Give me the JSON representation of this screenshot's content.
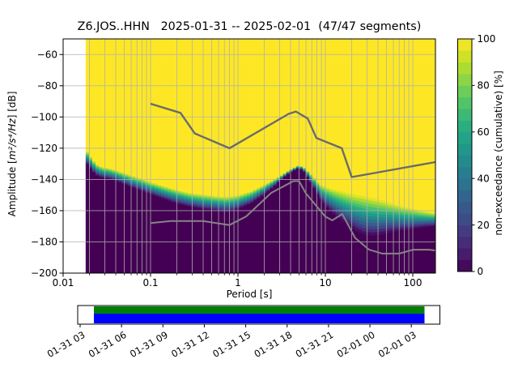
{
  "chart_data": {
    "type": "heatmap",
    "title": "Z6.JOS..HHN   2025-01-31 -- 2025-02-01  (47/47 segments)",
    "xlabel": "Period [s]",
    "ylabel": "Amplitude [m²/s⁴/Hz] [dB]",
    "ylabel_parts": {
      "prefix": "Amplitude [",
      "math": "m²/s⁴/Hz",
      "suffix": "] [dB]"
    },
    "colorbar_label": "non-exceedance (cumulative) [%]",
    "x_axis": {
      "scale": "log",
      "min": 0.01,
      "max": 181.7,
      "major_ticks": [
        {
          "v": 0.01,
          "label": "0.01"
        },
        {
          "v": 0.1,
          "label": "0.1"
        },
        {
          "v": 1,
          "label": "1"
        },
        {
          "v": 10,
          "label": "10"
        },
        {
          "v": 100,
          "label": "100"
        }
      ]
    },
    "y_axis": {
      "min": -200,
      "max": -50,
      "ticks": [
        {
          "v": -60,
          "label": "−60"
        },
        {
          "v": -80,
          "label": "−80"
        },
        {
          "v": -100,
          "label": "−100"
        },
        {
          "v": -120,
          "label": "−120"
        },
        {
          "v": -140,
          "label": "−140"
        },
        {
          "v": -160,
          "label": "−160"
        },
        {
          "v": -180,
          "label": "−180"
        },
        {
          "v": -200,
          "label": "−200"
        }
      ]
    },
    "colorbar": {
      "min": 0,
      "max": 100,
      "bands": 20,
      "ticks": [
        {
          "v": 0,
          "label": "0"
        },
        {
          "v": 20,
          "label": "20"
        },
        {
          "v": 40,
          "label": "40"
        },
        {
          "v": 60,
          "label": "60"
        },
        {
          "v": 80,
          "label": "80"
        },
        {
          "v": 100,
          "label": "100"
        }
      ]
    },
    "colormap": [
      [
        0.0,
        "#440154"
      ],
      [
        0.1,
        "#482475"
      ],
      [
        0.2,
        "#414487"
      ],
      [
        0.3,
        "#355f8d"
      ],
      [
        0.4,
        "#2a788e"
      ],
      [
        0.5,
        "#21918c"
      ],
      [
        0.6,
        "#22a884"
      ],
      [
        0.7,
        "#44bf70"
      ],
      [
        0.8,
        "#7ad151"
      ],
      [
        0.9,
        "#bddf26"
      ],
      [
        1.0,
        "#fde725"
      ]
    ],
    "distribution": {
      "comment": "per period: dB where cumulative non-exceedance reaches 100% (top of transition) and 0% (top of dark region)",
      "periods": [
        0.0181,
        0.021,
        0.024,
        0.028,
        0.033,
        0.04,
        0.055,
        0.075,
        0.1,
        0.14,
        0.2,
        0.28,
        0.4,
        0.55,
        0.75,
        1.0,
        1.4,
        1.9,
        2.6,
        3.3,
        4.0,
        5.0,
        5.8,
        7.0,
        8.6,
        10.5,
        13,
        17,
        22,
        28,
        36,
        46,
        60,
        80,
        105,
        140,
        181.7
      ],
      "db_100pct": [
        -120.5,
        -126,
        -130,
        -132,
        -132.5,
        -134,
        -136.5,
        -139,
        -141.5,
        -144,
        -146.5,
        -148.5,
        -149.5,
        -150.5,
        -151,
        -150,
        -147.5,
        -144,
        -140,
        -136.5,
        -133.5,
        -130.8,
        -132.5,
        -137,
        -143,
        -145,
        -146.5,
        -148,
        -149.5,
        -150.5,
        -152,
        -153.5,
        -155.5,
        -157.5,
        -159,
        -160.5,
        -161.5
      ],
      "db_0pct": [
        -129,
        -134,
        -137.5,
        -139,
        -139.5,
        -141,
        -144,
        -147,
        -149.5,
        -152.5,
        -155.5,
        -157.5,
        -159,
        -160,
        -161,
        -159,
        -155.5,
        -150.5,
        -144.5,
        -139,
        -135.5,
        -132.8,
        -135.5,
        -143,
        -152,
        -158,
        -163,
        -168,
        -172.5,
        -175.5,
        -176,
        -175,
        -173.5,
        -172.5,
        -171.5,
        -170.5,
        -170
      ]
    },
    "noise_models": {
      "high": {
        "periods": [
          0.1,
          0.22,
          0.32,
          0.8,
          3.8,
          4.6,
          6.3,
          7.9,
          15.4,
          20.0,
          181.7
        ],
        "db": [
          -91.5,
          -97.4,
          -110.5,
          -120.0,
          -98.0,
          -96.5,
          -101.0,
          -113.5,
          -120.0,
          -138.5,
          -128.9
        ]
      },
      "low": {
        "periods": [
          0.1,
          0.17,
          0.4,
          0.8,
          1.24,
          2.4,
          4.3,
          5.0,
          6.0,
          10.0,
          12.0,
          15.6,
          21.9,
          31.6,
          45.0,
          70.0,
          101.0,
          154.0,
          181.7
        ],
        "db": [
          -168.0,
          -166.7,
          -166.7,
          -169.2,
          -163.7,
          -148.6,
          -141.1,
          -141.1,
          -149.0,
          -163.8,
          -166.2,
          -162.1,
          -177.5,
          -185.0,
          -187.5,
          -187.5,
          -185.0,
          -185.0,
          -185.5
        ]
      }
    },
    "colors": {
      "hist_max": "#fde725",
      "hist_min": "#440154",
      "grid": "#b0b0b0",
      "noise_model_high": "#6b6b6b",
      "noise_model_low": "#858585",
      "spine": "#000000"
    }
  },
  "timeline": {
    "tick_labels": [
      "01-31 03",
      "01-31 06",
      "01-31 09",
      "01-31 12",
      "01-31 15",
      "01-31 18",
      "01-31 21",
      "02-01 00",
      "02-01 03"
    ],
    "bar": {
      "start_frac": 0.0447,
      "end_frac": 0.9575,
      "used_color": "#008000",
      "data_color": "#0000ff"
    }
  }
}
